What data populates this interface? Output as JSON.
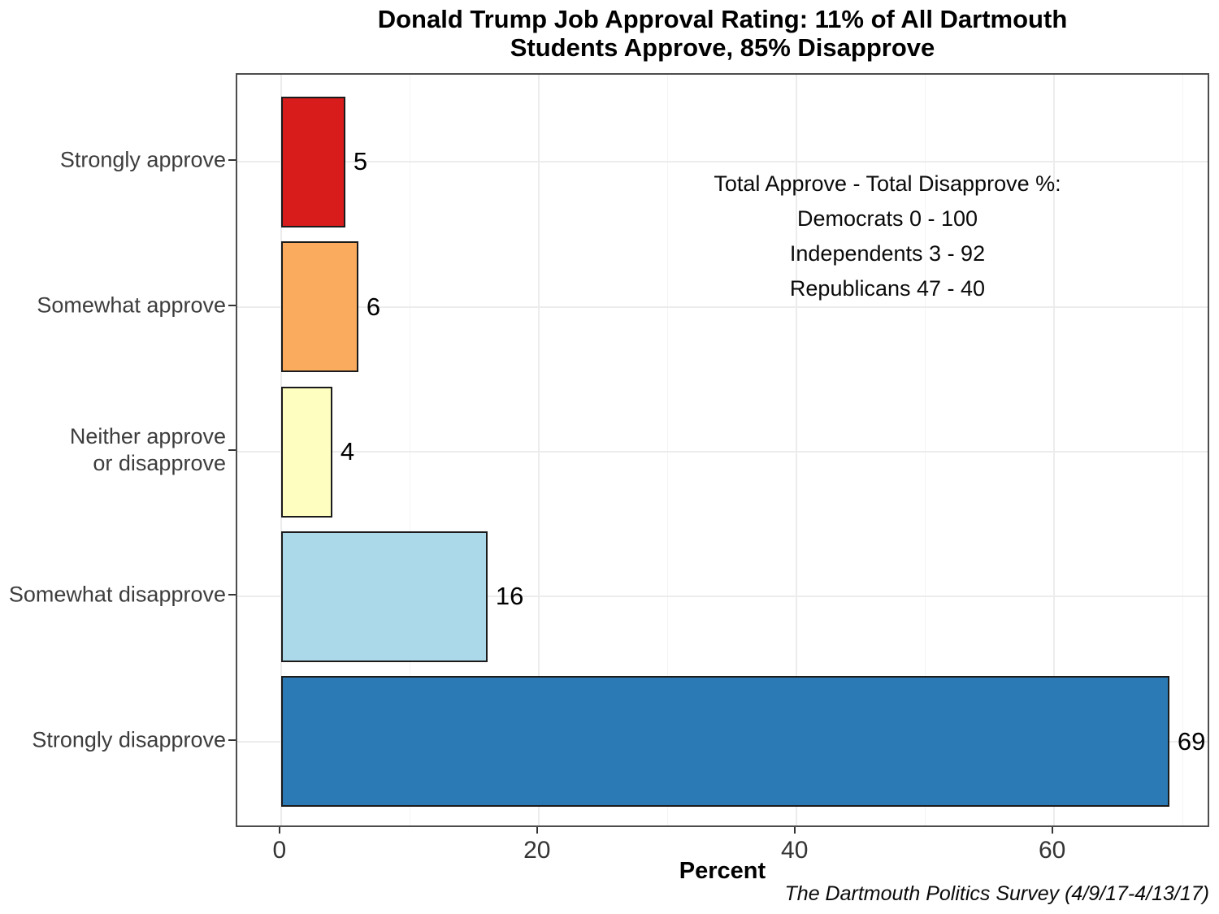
{
  "chart_data": {
    "type": "bar",
    "orientation": "horizontal",
    "title_lines": [
      "Donald Trump Job Approval Rating: 11% of All Dartmouth",
      "Students Approve, 85% Disapprove"
    ],
    "categories": [
      "Strongly approve",
      "Somewhat approve",
      "Neither approve\nor disapprove",
      "Somewhat disapprove",
      "Strongly disapprove"
    ],
    "values": [
      5,
      6,
      4,
      16,
      69
    ],
    "value_labels": [
      "5",
      "6",
      "4",
      "16",
      "69"
    ],
    "bar_colors": [
      "#D71C1B",
      "#FAAB5D",
      "#FEFEC0",
      "#ABD9E9",
      "#2B7AB5"
    ],
    "xlabel": "Percent",
    "x_ticks": [
      0,
      20,
      40,
      60
    ],
    "x_tick_labels": [
      "0",
      "20",
      "40",
      "60"
    ],
    "x_minor_ticks": [
      10,
      30,
      50,
      70
    ],
    "xlim": [
      -3.4,
      72.2
    ],
    "grid": "vertical major+minor, horizontal major at category centers",
    "legend": "none"
  },
  "annotation": {
    "heading": "Total Approve - Total Disapprove %:",
    "lines": [
      "Democrats 0 - 100",
      "Independents 3 - 92",
      "Republicans 47 - 40"
    ]
  },
  "caption": "The Dartmouth Politics Survey (4/9/17-4/13/17)",
  "colors": {
    "bar_border": "#1b1b1b",
    "panel_border": "#4d4d4d",
    "grid_major": "#ececec",
    "grid_minor": "#f4f4f4",
    "axis_text": "#3d3d3d",
    "tick_mark": "#343434",
    "title_text": "#000000",
    "value_label_text": "#000000"
  }
}
